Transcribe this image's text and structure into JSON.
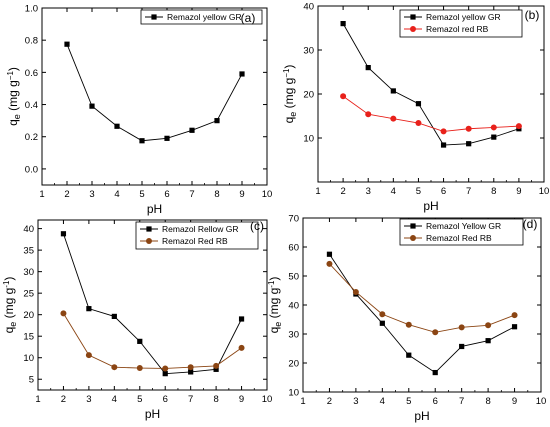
{
  "chart_data": [
    {
      "type": "line",
      "panel_label": "(a)",
      "xlabel": "pH",
      "ylabel_main": "q",
      "ylabel_sub": "e",
      "ylabel_unit": "(mg g",
      "ylabel_exp": "−1",
      "ylabel_close": ")",
      "xlim": [
        1,
        10
      ],
      "ylim": [
        -0.1,
        1.0
      ],
      "xticks": [
        1,
        2,
        3,
        4,
        5,
        6,
        7,
        8,
        9,
        10
      ],
      "yticks": [
        0.0,
        0.2,
        0.4,
        0.6,
        0.8,
        1.0
      ],
      "ytick_labels": [
        "0.0",
        "0.2",
        "0.4",
        "0.6",
        "0.8",
        "1.0"
      ],
      "legend_position": "top-right",
      "series": [
        {
          "name": "Remazol yellow GR",
          "color": "#000000",
          "marker": "square",
          "x": [
            2,
            3,
            4,
            5,
            6,
            7,
            8,
            9
          ],
          "values": [
            0.775,
            0.39,
            0.265,
            0.175,
            0.19,
            0.24,
            0.3,
            0.59
          ]
        }
      ]
    },
    {
      "type": "line",
      "panel_label": "(b)",
      "xlabel": "pH",
      "ylabel_main": "q",
      "ylabel_sub": "e",
      "ylabel_unit": "(mg g",
      "ylabel_exp": "−1",
      "ylabel_close": ")",
      "xlim": [
        1,
        10
      ],
      "ylim": [
        0,
        40
      ],
      "xticks": [
        1,
        2,
        3,
        4,
        5,
        6,
        7,
        8,
        9,
        10
      ],
      "yticks": [
        10,
        20,
        30,
        40
      ],
      "ytick_labels": [
        "10",
        "20",
        "30",
        "40"
      ],
      "legend_position": "top-right",
      "series": [
        {
          "name": "Remazol yellow GR",
          "color": "#000000",
          "marker": "square",
          "x": [
            2,
            3,
            4,
            5,
            6,
            7,
            8,
            9
          ],
          "values": [
            36,
            26,
            20.7,
            17.8,
            8.4,
            8.7,
            10.2,
            12.1
          ]
        },
        {
          "name": "Remazol red RB",
          "color": "#e8211b",
          "marker": "circle",
          "x": [
            2,
            3,
            4,
            5,
            6,
            7,
            8,
            9
          ],
          "values": [
            19.5,
            15.4,
            14.4,
            13.4,
            11.5,
            12.1,
            12.4,
            12.7
          ]
        }
      ]
    },
    {
      "type": "line",
      "panel_label": "(c)",
      "xlabel": "pH",
      "ylabel_main": "q",
      "ylabel_sub": "e",
      "ylabel_unit": "(mg g",
      "ylabel_exp": "-1",
      "ylabel_close": ")",
      "xlim": [
        1,
        10
      ],
      "ylim": [
        2.5,
        42
      ],
      "xticks": [
        1,
        2,
        3,
        4,
        5,
        6,
        7,
        8,
        9,
        10
      ],
      "yticks": [
        5,
        10,
        15,
        20,
        25,
        30,
        35,
        40
      ],
      "ytick_labels": [
        "5",
        "10",
        "15",
        "20",
        "25",
        "30",
        "35",
        "40"
      ],
      "legend_position": "top-right",
      "series": [
        {
          "name": "Remazol Rellow GR",
          "color": "#000000",
          "marker": "square",
          "x": [
            2,
            3,
            4,
            5,
            6,
            7,
            8,
            9
          ],
          "values": [
            38.8,
            21.4,
            19.6,
            13.8,
            6.3,
            6.7,
            7.3,
            19.0
          ]
        },
        {
          "name": "Remazol Red RB",
          "color": "#8b4513",
          "marker": "circle",
          "x": [
            2,
            3,
            4,
            5,
            6,
            7,
            8,
            9
          ],
          "values": [
            20.3,
            10.6,
            7.8,
            7.6,
            7.5,
            7.8,
            8.1,
            12.3
          ]
        }
      ]
    },
    {
      "type": "line",
      "panel_label": "(d)",
      "xlabel": "pH",
      "ylabel_main": "q",
      "ylabel_sub": "e",
      "ylabel_unit": "(mg g",
      "ylabel_exp": "-1",
      "ylabel_close": ")",
      "xlim": [
        1,
        10
      ],
      "ylim": [
        10,
        70
      ],
      "xticks": [
        1,
        2,
        3,
        4,
        5,
        6,
        7,
        8,
        9,
        10
      ],
      "yticks": [
        10,
        20,
        30,
        40,
        50,
        60,
        70
      ],
      "ytick_labels": [
        "10",
        "20",
        "30",
        "40",
        "50",
        "60",
        "70"
      ],
      "legend_position": "top-right",
      "series": [
        {
          "name": "Remazol Yellow GR",
          "color": "#000000",
          "marker": "square",
          "x": [
            2,
            3,
            4,
            5,
            6,
            7,
            8,
            9
          ],
          "values": [
            57.5,
            43.8,
            33.7,
            22.7,
            16.7,
            25.7,
            27.7,
            32.5
          ]
        },
        {
          "name": "Remazol Red RB",
          "color": "#8b4513",
          "marker": "circle",
          "x": [
            2,
            3,
            4,
            5,
            6,
            7,
            8,
            9
          ],
          "values": [
            54.2,
            44.5,
            36.8,
            33.2,
            30.6,
            32.3,
            33.0,
            36.5
          ]
        }
      ]
    }
  ]
}
